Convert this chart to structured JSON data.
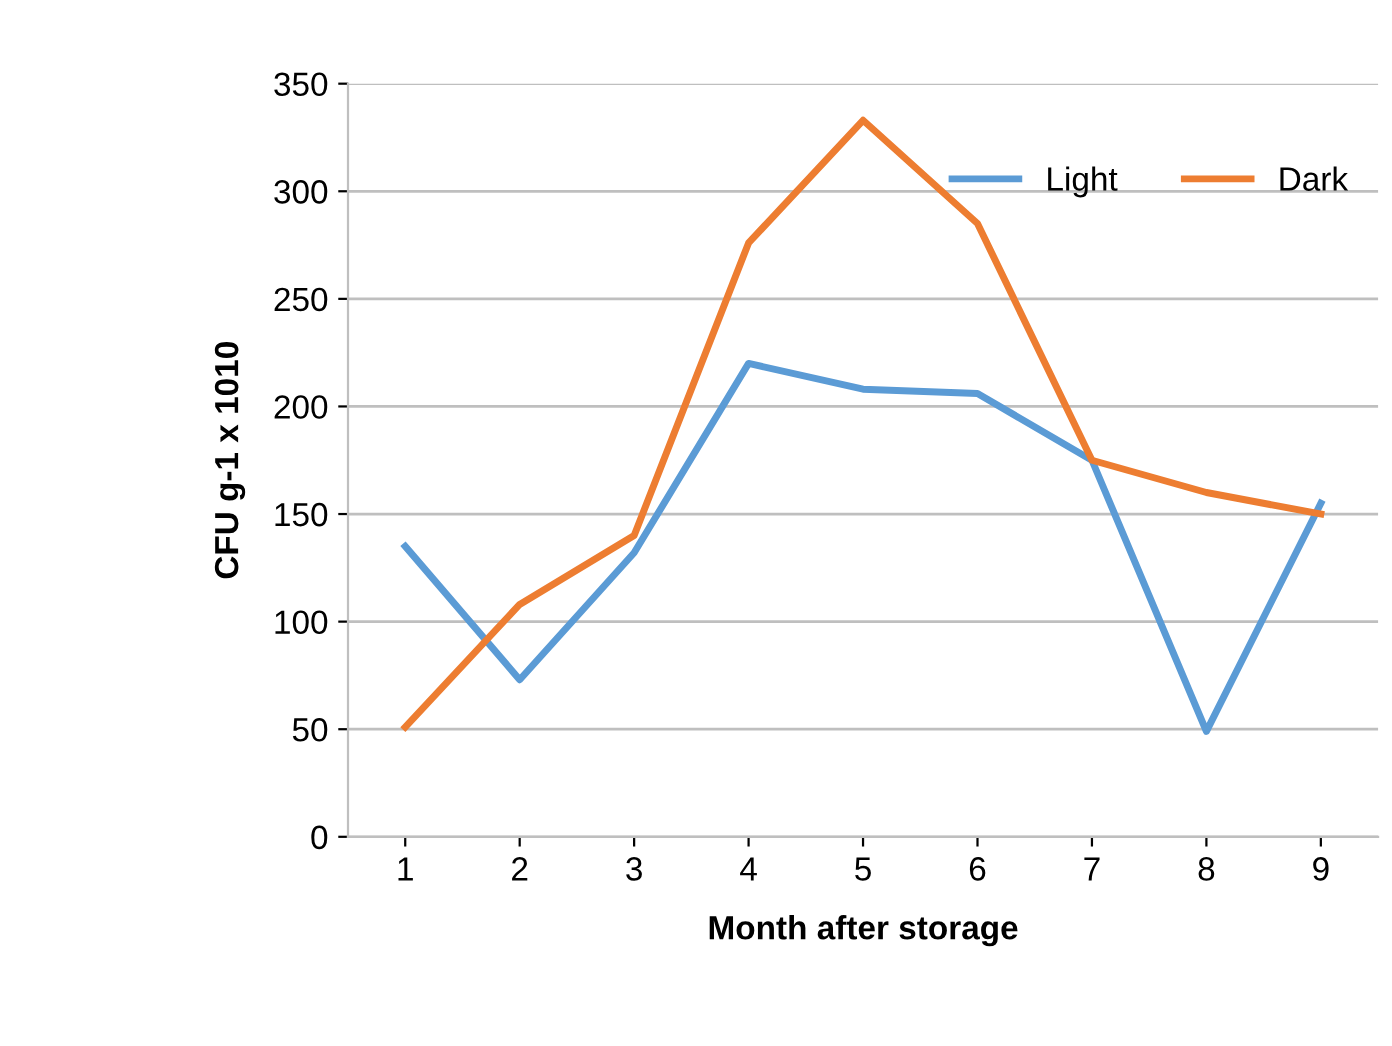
{
  "chart_data": {
    "type": "line",
    "xlabel": "Month after storage",
    "ylabel": "CFU g-1 x 1010",
    "categories": [
      "1",
      "2",
      "3",
      "4",
      "5",
      "6",
      "7",
      "8",
      "9"
    ],
    "series": [
      {
        "name": "Light",
        "color": "#5b9bd5",
        "values": [
          135,
          73,
          132,
          220,
          208,
          206,
          175,
          49,
          155
        ]
      },
      {
        "name": "Dark",
        "color": "#ed7d31",
        "values": [
          51,
          108,
          140,
          276,
          333,
          285,
          175,
          160,
          150
        ]
      }
    ],
    "ylim": [
      0,
      350
    ],
    "yticks": [
      0,
      50,
      100,
      150,
      200,
      250,
      300,
      350
    ],
    "grid": "y",
    "legend": "top right",
    "marker": "none",
    "line_style": "solid"
  }
}
